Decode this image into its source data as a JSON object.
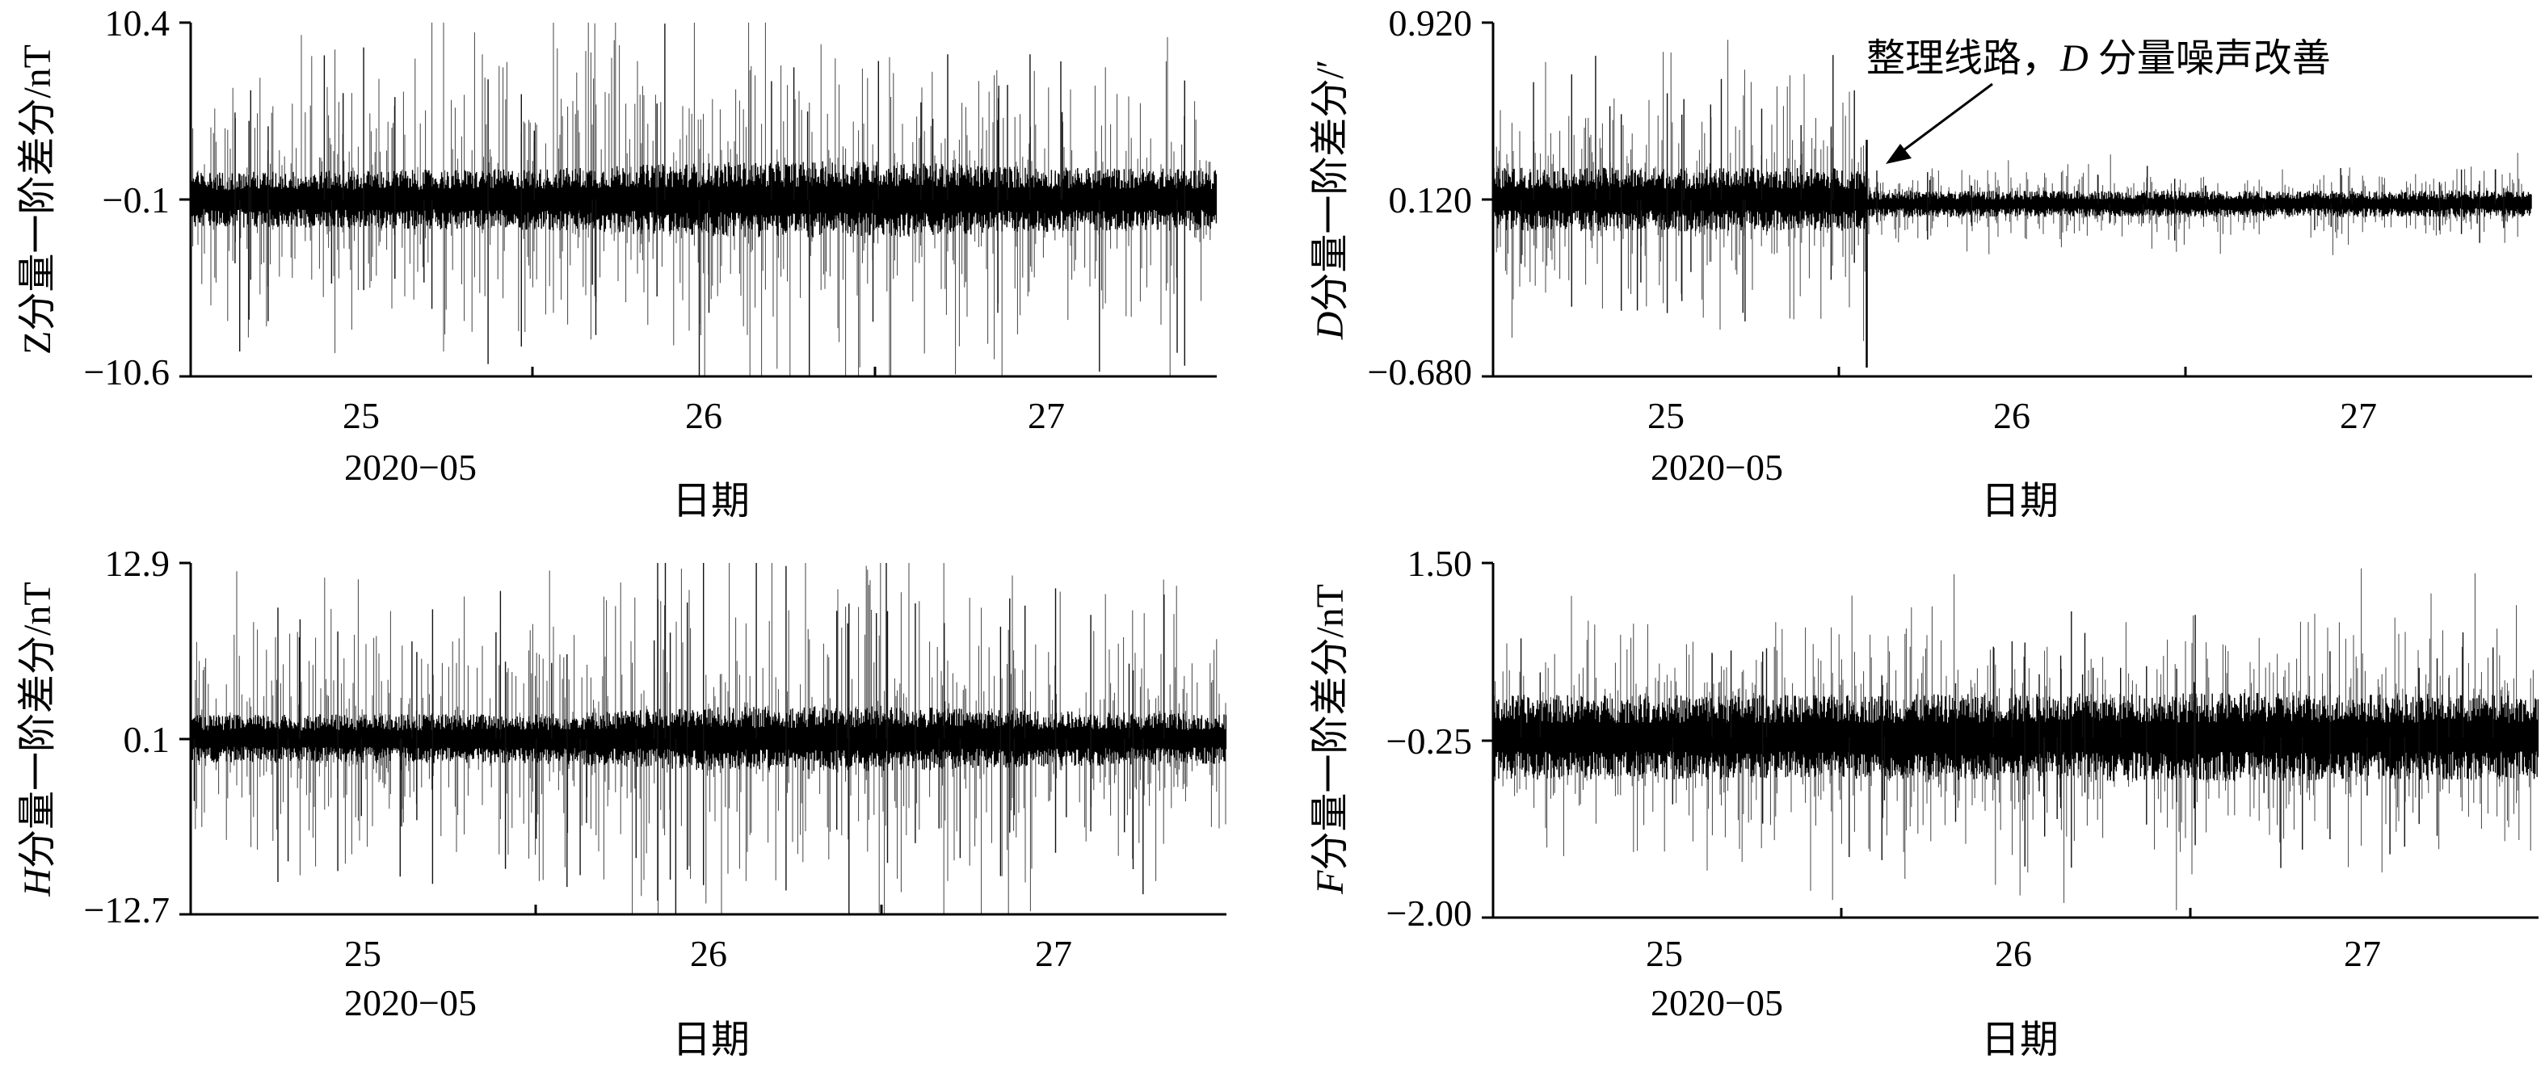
{
  "chart_data": [
    {
      "id": "Z",
      "type": "line",
      "ylabel": "Z分量一阶差分/nT",
      "ylabel_italic_prefix": "",
      "ylabel_upright_prefix": "Z",
      "ylabel_rest": "分量一阶差分/nT",
      "yticks": [
        "10.4",
        "−0.1",
        "−10.6"
      ],
      "ytick_values": [
        10.4,
        -0.1,
        -10.6
      ],
      "ylim": [
        -10.6,
        10.4
      ],
      "xticks": [
        "25",
        "26",
        "27"
      ],
      "x_month": "2020−05",
      "xlabel": "日期",
      "xlim": [
        "2020-05-24 12:00",
        "2020-05-27 12:00"
      ],
      "noise": {
        "baseline": -0.1,
        "core_amplitude": 1.6,
        "spike_amplitude": 7.0,
        "envelope": [
          [
            24.5,
            0.85
          ],
          [
            25.5,
            0.95
          ],
          [
            26.0,
            1.15
          ],
          [
            26.5,
            1.2
          ],
          [
            27.0,
            1.0
          ],
          [
            27.5,
            0.95
          ]
        ]
      }
    },
    {
      "id": "D",
      "type": "line",
      "ylabel": "D分量一阶差分/′",
      "ylabel_italic_prefix": "D",
      "ylabel_upright_prefix": "",
      "ylabel_rest": "分量一阶差分/′",
      "yticks": [
        "0.920",
        "0.120",
        "−0.680"
      ],
      "ytick_values": [
        0.92,
        0.12,
        -0.68
      ],
      "ylim": [
        -0.68,
        0.92
      ],
      "xticks": [
        "25",
        "26",
        "27"
      ],
      "x_month": "2020−05",
      "xlabel": "日期",
      "xlim": [
        "2020-05-24 12:00",
        "2020-05-27 12:00"
      ],
      "annotation": {
        "text_pre": "整理线路，",
        "text_italic": "D",
        "text_post": " 分量噪声改善",
        "x": 25.58,
        "y": 0.27
      },
      "noise": {
        "baseline": 0.12,
        "core_amplitude": 0.12,
        "spike_amplitude": 0.45,
        "change_x": 25.58,
        "after_baseline": 0.1,
        "after_core_amplitude": 0.05,
        "after_spike_amplitude": 0.12
      }
    },
    {
      "id": "H",
      "type": "line",
      "ylabel": "H分量一阶差分/nT",
      "ylabel_italic_prefix": "H",
      "ylabel_upright_prefix": "",
      "ylabel_rest": "分量一阶差分/nT",
      "yticks": [
        "12.9",
        "0.1",
        "−12.7"
      ],
      "ytick_values": [
        12.9,
        0.1,
        -12.7
      ],
      "ylim": [
        -12.7,
        12.9
      ],
      "xticks": [
        "25",
        "26",
        "27"
      ],
      "x_month": "2020−05",
      "xlabel": "日期",
      "xlim": [
        "2020-05-24 12:00",
        "2020-05-27 12:00"
      ],
      "noise": {
        "baseline": 0.1,
        "core_amplitude": 1.6,
        "spike_amplitude": 8.0,
        "envelope": [
          [
            24.5,
            0.9
          ],
          [
            25.5,
            0.95
          ],
          [
            26.0,
            1.2
          ],
          [
            26.5,
            1.25
          ],
          [
            27.0,
            1.05
          ],
          [
            27.5,
            0.95
          ]
        ]
      }
    },
    {
      "id": "F",
      "type": "line",
      "ylabel": "F分量一阶差分/nT",
      "ylabel_italic_prefix": "F",
      "ylabel_upright_prefix": "",
      "ylabel_rest": "分量一阶差分/nT",
      "yticks": [
        "1.50",
        "−0.25",
        "−2.00"
      ],
      "ytick_values": [
        1.5,
        -0.25,
        -2.0
      ],
      "ylim": [
        -2.0,
        1.5
      ],
      "xticks": [
        "25",
        "26",
        "27"
      ],
      "x_month": "2020−05",
      "xlabel": "日期",
      "xlim": [
        "2020-05-24 12:00",
        "2020-05-27 12:00"
      ],
      "noise": {
        "baseline": -0.22,
        "core_amplitude": 0.35,
        "spike_amplitude": 0.85,
        "envelope": [
          [
            24.5,
            1.0
          ],
          [
            25.5,
            1.0
          ],
          [
            26.5,
            1.05
          ],
          [
            27.5,
            1.0
          ]
        ]
      }
    }
  ]
}
